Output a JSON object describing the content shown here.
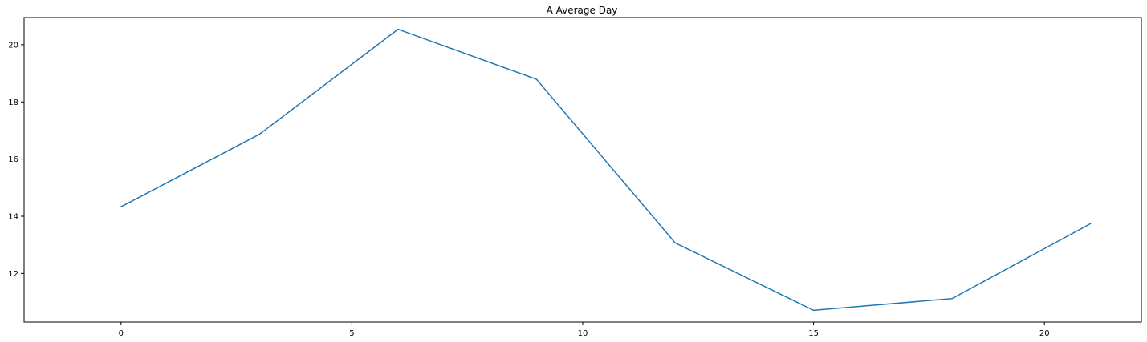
{
  "chart_data": {
    "type": "line",
    "title": "A Average Day",
    "xlabel": "",
    "ylabel": "",
    "xlim": [
      -2.1,
      22.1
    ],
    "ylim": [
      10.3,
      20.95
    ],
    "xticks": [
      0,
      5,
      10,
      15,
      20
    ],
    "yticks": [
      12,
      14,
      16,
      18,
      20
    ],
    "x": [
      0,
      3,
      6,
      9,
      12,
      15,
      18,
      21
    ],
    "series": [
      {
        "values": [
          14.33,
          16.87,
          20.54,
          18.79,
          13.07,
          10.71,
          11.12,
          13.74
        ],
        "color": "#1f77b4"
      }
    ],
    "grid": false,
    "legend": false
  }
}
